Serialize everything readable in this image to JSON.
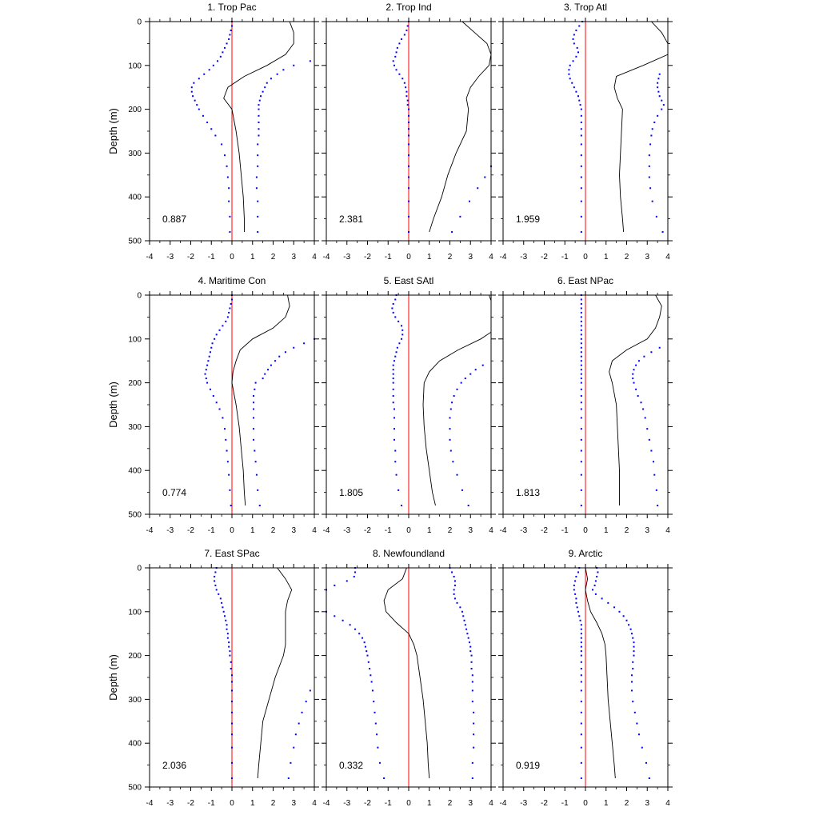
{
  "chart_data": {
    "type": "line",
    "ylabel": "Depth (m)",
    "xlim": [
      -4,
      4
    ],
    "ylim": [
      0,
      500
    ],
    "y_inverted": true,
    "x_ticks": [
      -4,
      -3,
      -2,
      -1,
      0,
      1,
      2,
      3,
      4
    ],
    "y_ticks": [
      0,
      100,
      200,
      300,
      400,
      500
    ],
    "grid": false,
    "legend": "none",
    "colors": {
      "line": "#000000",
      "dots": "#0000ff",
      "zero": "#ff0000"
    },
    "depths": [
      0,
      25,
      50,
      75,
      100,
      125,
      150,
      175,
      200,
      250,
      300,
      350,
      400,
      450,
      480
    ],
    "dot_depths": [
      0,
      10,
      20,
      30,
      40,
      50,
      60,
      70,
      80,
      90,
      100,
      110,
      120,
      130,
      140,
      150,
      160,
      170,
      180,
      190,
      200,
      215,
      230,
      245,
      260,
      280,
      305,
      330,
      355,
      380,
      410,
      445,
      480
    ],
    "panels": [
      {
        "title": "1. Trop Pac",
        "value": "0.887",
        "line": [
          2.8,
          3.0,
          3.0,
          2.6,
          1.7,
          0.6,
          -0.2,
          -0.4,
          0.0,
          0.2,
          0.35,
          0.45,
          0.55,
          0.6,
          0.6
        ],
        "lower": [
          0.0,
          0.0,
          -0.05,
          -0.1,
          -0.15,
          -0.25,
          -0.35,
          -0.45,
          -0.55,
          -0.7,
          -0.9,
          -1.1,
          -1.35,
          -1.6,
          -1.85,
          -1.95,
          -1.95,
          -1.9,
          -1.8,
          -1.7,
          -1.6,
          -1.4,
          -1.2,
          -1.0,
          -0.8,
          -0.5,
          -0.35,
          -0.25,
          -0.2,
          -0.15,
          -0.15,
          -0.1,
          -0.1
        ],
        "upper": [
          null,
          null,
          null,
          null,
          null,
          null,
          null,
          null,
          null,
          3.8,
          3.0,
          2.5,
          2.2,
          1.9,
          1.7,
          1.6,
          1.5,
          1.4,
          1.35,
          1.3,
          1.3,
          1.3,
          1.3,
          1.3,
          1.3,
          1.25,
          1.25,
          1.25,
          1.2,
          1.2,
          1.25,
          1.25,
          1.25
        ]
      },
      {
        "title": "2. Trop Ind",
        "value": "2.381",
        "line": [
          2.6,
          3.2,
          3.8,
          4.0,
          3.9,
          3.4,
          3.0,
          2.8,
          2.9,
          2.8,
          2.3,
          1.9,
          1.6,
          1.2,
          1.0
        ],
        "lower": [
          0.0,
          -0.05,
          -0.1,
          -0.2,
          -0.35,
          -0.45,
          -0.55,
          -0.6,
          -0.65,
          -0.75,
          -0.7,
          -0.6,
          -0.45,
          -0.3,
          -0.2,
          -0.15,
          -0.1,
          -0.1,
          -0.05,
          -0.05,
          0.0,
          0.0,
          0.0,
          0.0,
          0.0,
          0.0,
          0.0,
          0.0,
          0.0,
          0.0,
          0.0,
          0.0,
          0.0
        ],
        "upper": [
          null,
          null,
          null,
          null,
          null,
          null,
          null,
          null,
          null,
          null,
          null,
          null,
          null,
          null,
          null,
          null,
          null,
          null,
          null,
          null,
          null,
          null,
          null,
          null,
          null,
          null,
          null,
          4.0,
          3.7,
          3.35,
          2.95,
          2.5,
          2.1
        ]
      },
      {
        "title": "3. Trop Atl",
        "value": "1.959",
        "line": [
          3.2,
          3.7,
          4.0,
          4.0,
          2.8,
          1.5,
          1.4,
          1.55,
          1.8,
          1.75,
          1.7,
          1.65,
          1.7,
          1.8,
          1.85
        ],
        "lower": [
          -0.15,
          -0.3,
          -0.45,
          -0.55,
          -0.6,
          -0.55,
          -0.4,
          -0.35,
          -0.45,
          -0.6,
          -0.75,
          -0.8,
          -0.8,
          -0.75,
          -0.65,
          -0.55,
          -0.45,
          -0.35,
          -0.3,
          -0.25,
          -0.2,
          -0.2,
          -0.2,
          -0.2,
          -0.2,
          -0.2,
          -0.2,
          -0.2,
          -0.2,
          -0.2,
          -0.2,
          -0.2,
          -0.2
        ],
        "upper": [
          null,
          null,
          null,
          null,
          null,
          null,
          null,
          null,
          null,
          null,
          null,
          null,
          3.6,
          3.55,
          3.5,
          3.5,
          3.55,
          3.6,
          3.7,
          3.8,
          3.7,
          3.5,
          3.35,
          3.25,
          3.2,
          3.15,
          3.1,
          3.1,
          3.1,
          3.15,
          3.25,
          3.45,
          3.75
        ]
      },
      {
        "title": "4. Maritime Con",
        "value": "0.774",
        "line": [
          2.7,
          2.8,
          2.6,
          2.0,
          1.0,
          0.4,
          0.2,
          0.05,
          0.0,
          0.2,
          0.35,
          0.45,
          0.55,
          0.6,
          0.65
        ],
        "lower": [
          0.0,
          0.0,
          -0.05,
          -0.1,
          -0.15,
          -0.2,
          -0.3,
          -0.45,
          -0.6,
          -0.75,
          -0.85,
          -0.95,
          -1.0,
          -1.05,
          -1.1,
          -1.15,
          -1.2,
          -1.25,
          -1.3,
          -1.25,
          -1.2,
          -1.05,
          -0.9,
          -0.75,
          -0.6,
          -0.45,
          -0.35,
          -0.3,
          -0.25,
          -0.2,
          -0.15,
          -0.1,
          -0.05
        ],
        "upper": [
          null,
          null,
          null,
          null,
          null,
          null,
          null,
          null,
          null,
          null,
          4.0,
          3.5,
          3.0,
          2.6,
          2.3,
          2.1,
          1.9,
          1.75,
          1.6,
          1.5,
          1.15,
          1.1,
          1.05,
          1.05,
          1.05,
          1.05,
          1.05,
          1.05,
          1.1,
          1.15,
          1.2,
          1.25,
          1.35
        ]
      },
      {
        "title": "5. East SAtl",
        "value": "1.805",
        "line": [
          3.9,
          4.1,
          4.3,
          4.3,
          3.5,
          2.4,
          1.5,
          1.0,
          0.75,
          0.7,
          0.75,
          0.85,
          1.0,
          1.15,
          1.3
        ],
        "lower": [
          -0.6,
          -0.65,
          -0.75,
          -0.8,
          -0.75,
          -0.65,
          -0.5,
          -0.35,
          -0.3,
          -0.3,
          -0.35,
          -0.45,
          -0.55,
          -0.6,
          -0.65,
          -0.7,
          -0.75,
          -0.75,
          -0.75,
          -0.75,
          -0.75,
          -0.75,
          -0.75,
          -0.75,
          -0.7,
          -0.7,
          -0.7,
          -0.7,
          -0.65,
          -0.65,
          -0.6,
          -0.5,
          -0.35
        ],
        "upper": [
          null,
          null,
          null,
          null,
          null,
          null,
          null,
          null,
          null,
          null,
          null,
          null,
          null,
          null,
          null,
          null,
          3.6,
          3.25,
          3.0,
          2.75,
          2.55,
          2.35,
          2.2,
          2.1,
          2.05,
          2.0,
          2.0,
          2.0,
          2.05,
          2.15,
          2.35,
          2.6,
          2.9
        ]
      },
      {
        "title": "6. East NPac",
        "value": "1.813",
        "line": [
          3.4,
          3.7,
          3.6,
          3.4,
          3.0,
          2.0,
          1.3,
          1.15,
          1.3,
          1.5,
          1.55,
          1.6,
          1.65,
          1.65,
          1.65
        ],
        "lower": [
          -0.2,
          -0.2,
          -0.2,
          -0.2,
          -0.2,
          -0.2,
          -0.2,
          -0.2,
          -0.2,
          -0.2,
          -0.2,
          -0.2,
          -0.2,
          -0.2,
          -0.2,
          -0.2,
          -0.2,
          -0.2,
          -0.2,
          -0.2,
          -0.2,
          -0.2,
          -0.2,
          -0.2,
          -0.2,
          -0.2,
          -0.2,
          -0.2,
          -0.2,
          -0.2,
          -0.2,
          -0.2,
          -0.2
        ],
        "upper": [
          null,
          null,
          null,
          null,
          null,
          null,
          null,
          null,
          null,
          null,
          null,
          null,
          3.6,
          3.2,
          2.85,
          2.6,
          2.45,
          2.35,
          2.3,
          2.3,
          2.35,
          2.45,
          2.55,
          2.7,
          2.8,
          2.9,
          3.0,
          3.1,
          3.2,
          3.3,
          3.35,
          3.45,
          3.5
        ]
      },
      {
        "title": "7. East SPac",
        "value": "2.036",
        "line": [
          2.2,
          2.6,
          2.9,
          2.7,
          2.6,
          2.6,
          2.6,
          2.6,
          2.5,
          2.1,
          1.8,
          1.5,
          1.4,
          1.3,
          1.25
        ],
        "lower": [
          -0.75,
          -0.8,
          -0.85,
          -0.85,
          -0.8,
          -0.75,
          -0.65,
          -0.55,
          -0.5,
          -0.45,
          -0.4,
          -0.35,
          -0.3,
          -0.25,
          -0.25,
          -0.2,
          -0.2,
          -0.15,
          -0.15,
          -0.1,
          -0.1,
          -0.05,
          -0.05,
          0.0,
          0.0,
          0.0,
          0.0,
          0.0,
          0.0,
          0.0,
          0.0,
          0.0,
          0.0
        ],
        "upper": [
          null,
          null,
          null,
          null,
          null,
          null,
          null,
          null,
          null,
          null,
          null,
          null,
          null,
          null,
          null,
          null,
          null,
          null,
          null,
          null,
          null,
          null,
          null,
          null,
          null,
          3.8,
          3.6,
          3.4,
          3.25,
          3.1,
          3.0,
          2.85,
          2.75
        ]
      },
      {
        "title": "8. Newfoundland",
        "value": "0.332",
        "line": [
          -0.1,
          -0.3,
          -1.0,
          -1.2,
          -1.1,
          -0.6,
          0.0,
          0.25,
          0.4,
          0.55,
          0.7,
          0.8,
          0.9,
          0.95,
          1.0
        ],
        "lower": [
          -2.6,
          -2.6,
          -2.65,
          -3.0,
          -3.6,
          -4.0,
          null,
          null,
          null,
          null,
          -4.0,
          -3.6,
          -3.2,
          -2.85,
          -2.6,
          -2.4,
          -2.25,
          -2.15,
          -2.1,
          -2.05,
          -2.0,
          -1.95,
          -1.9,
          -1.85,
          -1.8,
          -1.75,
          -1.7,
          -1.65,
          -1.6,
          -1.55,
          -1.5,
          -1.4,
          -1.2
        ],
        "upper": [
          2.0,
          2.1,
          2.2,
          2.25,
          2.25,
          2.2,
          2.2,
          2.25,
          2.35,
          2.5,
          2.6,
          2.65,
          2.7,
          2.75,
          2.8,
          2.85,
          2.9,
          2.95,
          3.0,
          3.0,
          3.05,
          3.05,
          3.05,
          3.1,
          3.1,
          3.1,
          3.1,
          3.15,
          3.15,
          3.15,
          3.15,
          3.1,
          3.1
        ]
      },
      {
        "title": "9. Arctic",
        "value": "0.919",
        "line": [
          0.0,
          0.1,
          0.0,
          0.1,
          0.25,
          0.55,
          0.8,
          0.95,
          1.0,
          1.05,
          1.1,
          1.2,
          1.3,
          1.4,
          1.45
        ],
        "lower": [
          -0.3,
          -0.35,
          -0.45,
          -0.5,
          -0.55,
          -0.55,
          -0.5,
          -0.45,
          -0.45,
          -0.4,
          -0.35,
          -0.3,
          -0.25,
          -0.2,
          -0.2,
          -0.2,
          -0.2,
          -0.2,
          -0.2,
          -0.2,
          -0.2,
          -0.2,
          -0.2,
          -0.2,
          -0.2,
          -0.2,
          -0.2,
          -0.2,
          -0.2,
          -0.2,
          -0.2,
          -0.2,
          -0.2
        ],
        "upper": [
          0.55,
          0.6,
          0.55,
          0.5,
          0.45,
          0.35,
          0.5,
          0.8,
          1.1,
          1.4,
          1.65,
          1.85,
          2.0,
          2.1,
          2.2,
          2.25,
          2.3,
          2.35,
          2.35,
          2.35,
          2.35,
          2.3,
          2.3,
          2.25,
          2.25,
          2.25,
          2.3,
          2.4,
          2.5,
          2.6,
          2.75,
          2.95,
          3.1
        ]
      }
    ]
  }
}
